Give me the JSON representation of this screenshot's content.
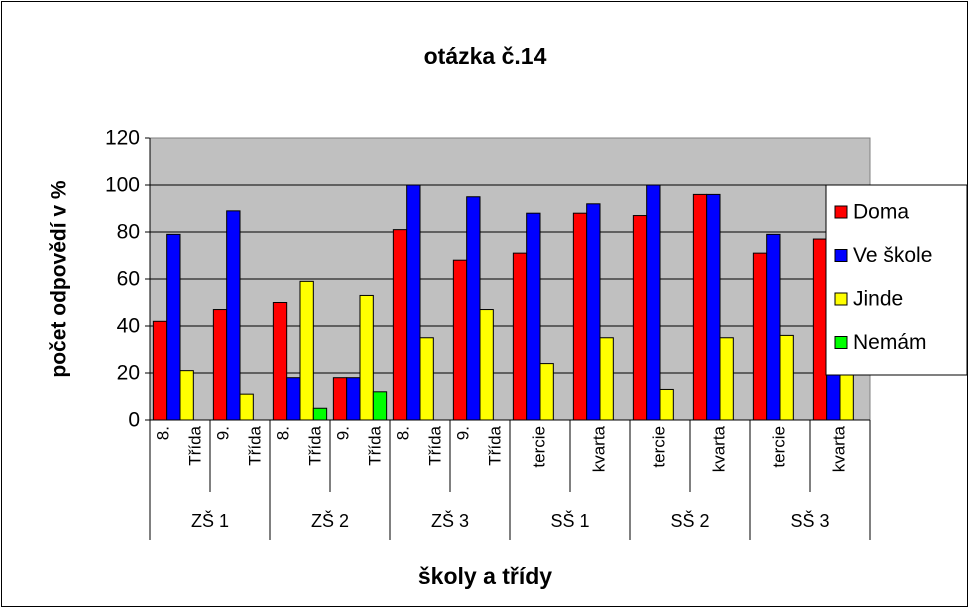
{
  "chart_data": {
    "type": "bar",
    "title": "otázka č.14",
    "ylabel": "počet odpovědí v %",
    "xlabel": "školy a třídy",
    "categories": [
      [
        "8.",
        "Třída"
      ],
      [
        "9.",
        "Třída"
      ],
      [
        "8.",
        "Třída"
      ],
      [
        "9.",
        "Třída"
      ],
      [
        "8.",
        "Třída"
      ],
      [
        "9.",
        "Třída"
      ],
      [
        "tercie"
      ],
      [
        "kvarta"
      ],
      [
        "tercie"
      ],
      [
        "kvarta"
      ],
      [
        "tercie"
      ],
      [
        "kvarta"
      ]
    ],
    "groups": [
      "ZŠ 1",
      "ZŠ 2",
      "ZŠ 3",
      "SŠ 1",
      "SŠ 2",
      "SŠ 3"
    ],
    "series": [
      {
        "name": "Doma",
        "color": "#ff0000",
        "values": [
          42,
          47,
          50,
          18,
          81,
          68,
          71,
          88,
          87,
          96,
          71,
          77
        ]
      },
      {
        "name": "Ve škole",
        "color": "#0000ff",
        "values": [
          79,
          89,
          18,
          18,
          100,
          95,
          88,
          92,
          100,
          96,
          79,
          96
        ]
      },
      {
        "name": "Jinde",
        "color": "#ffff00",
        "values": [
          21,
          11,
          59,
          53,
          35,
          47,
          24,
          35,
          13,
          35,
          36,
          42
        ]
      },
      {
        "name": "Nemám",
        "color": "#00ff00",
        "values": [
          0,
          0,
          5,
          12,
          0,
          0,
          0,
          0,
          0,
          0,
          0,
          0
        ]
      }
    ],
    "ylim": [
      0,
      120
    ],
    "yticks": [
      0,
      20,
      40,
      60,
      80,
      100,
      120
    ],
    "grid": true,
    "legend": "right",
    "plot_background": "#c0c0c0"
  }
}
